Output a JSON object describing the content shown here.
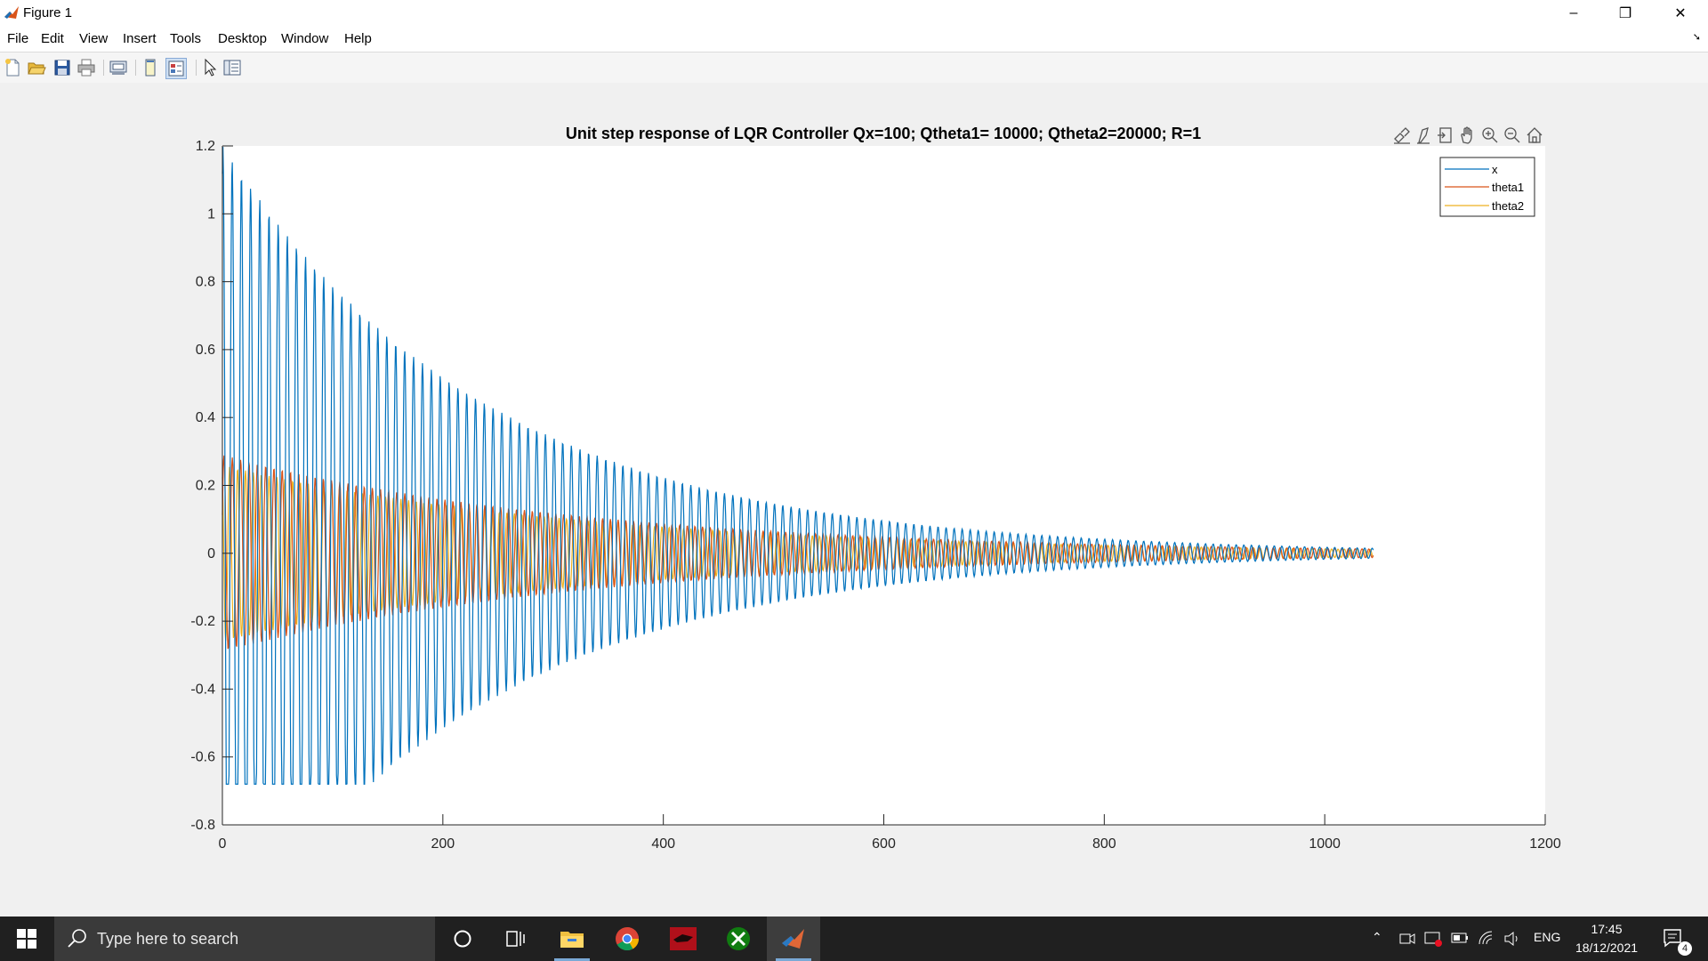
{
  "window": {
    "title": "Figure 1",
    "minimize": "–",
    "maximize": "❐",
    "close": "✕"
  },
  "menu": {
    "items": [
      "File",
      "Edit",
      "View",
      "Insert",
      "Tools",
      "Desktop",
      "Window",
      "Help"
    ],
    "dock_arrow": "➘"
  },
  "toolbar": {
    "icons": [
      "new-figure-icon",
      "open-file-icon",
      "save-icon",
      "print-icon",
      "link-plot-icon",
      "hide-plot-tools-icon",
      "show-plot-tools-icon",
      "edit-plot-icon",
      "property-inspector-icon"
    ]
  },
  "axes_toolbar": {
    "icons": [
      "brush-icon",
      "data-tips-icon",
      "export-icon",
      "pan-icon",
      "zoom-in-icon",
      "zoom-out-icon",
      "home-icon"
    ]
  },
  "chart_data": {
    "type": "line",
    "title": "Unit step response of LQR Controller Qx=100; Qtheta1= 10000; Qtheta2=20000; R=1",
    "xlabel": "",
    "ylabel": "",
    "xlim": [
      0,
      1200
    ],
    "ylim": [
      -0.8,
      1.2
    ],
    "xticks": [
      0,
      200,
      400,
      600,
      800,
      1000,
      1200
    ],
    "yticks": [
      -0.8,
      -0.6,
      -0.4,
      -0.2,
      0,
      0.2,
      0.4,
      0.6,
      0.8,
      1,
      1.2
    ],
    "ytick_labels": [
      "-0.8",
      "-0.6",
      "-0.4",
      "-0.2",
      "0",
      "0.2",
      "0.4",
      "0.6",
      "0.8",
      "1",
      "1.2"
    ],
    "grid": false,
    "legend_position": "top-right",
    "x_end": 1044,
    "series": [
      {
        "name": "x",
        "color": "#0072BD",
        "envelope_start": 1.2,
        "decay_per_1000": 4.2,
        "period": 8.4,
        "min_peak": -0.68
      },
      {
        "name": "theta1",
        "color": "#D95319",
        "envelope_start": 0.29,
        "decay_per_1000": 3.0,
        "period": 7.6
      },
      {
        "name": "theta2",
        "color": "#EDB120",
        "envelope_start": 0.26,
        "decay_per_1000": 3.0,
        "period": 7.2
      }
    ]
  },
  "taskbar": {
    "search_placeholder": "Type here to search",
    "language": "ENG",
    "time": "17:45",
    "date": "18/12/2021",
    "notifications": "4",
    "apps": [
      "cortana-icon",
      "task-view-icon",
      "file-explorer-icon",
      "chrome-icon",
      "red-app-icon",
      "xbox-icon",
      "matlab-icon"
    ]
  }
}
